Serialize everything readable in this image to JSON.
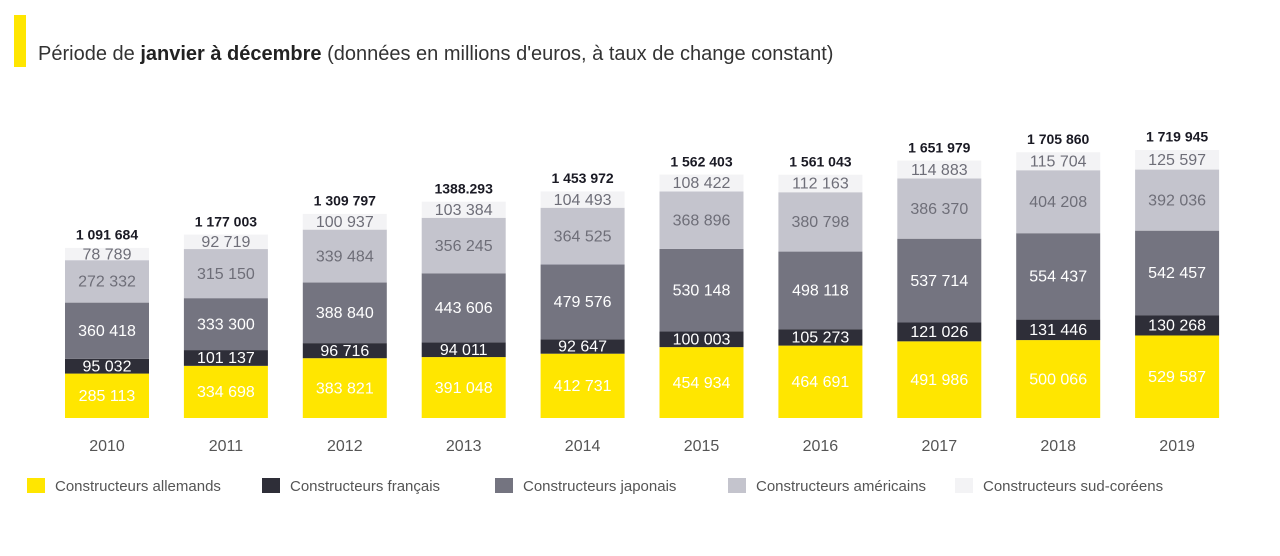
{
  "chart_data": {
    "type": "stacked_bar",
    "title_lead": "Période de",
    "title_bold": "janvier à décembre",
    "title_rest": "(données en millions d'euros, à taux de change constant)",
    "categories": [
      "2010",
      "2011",
      "2012",
      "2013",
      "2014",
      "2015",
      "2016",
      "2017",
      "2018",
      "2019"
    ],
    "series": [
      {
        "name": "Constructeurs allemands",
        "color": "#ffe600",
        "label_color": "#ffffff",
        "values": [
          285113,
          334698,
          383821,
          391048,
          412731,
          454934,
          464691,
          491986,
          500066,
          529587
        ],
        "value_labels": [
          "285 113",
          "334 698",
          "383 821",
          "391 048",
          "412 731",
          "454 934",
          "464 691",
          "491 986",
          "500 066",
          "529 587"
        ]
      },
      {
        "name": "Constructeurs français",
        "color": "#2e2e38",
        "label_color": "#ffffff",
        "values": [
          95032,
          101137,
          96716,
          94011,
          92647,
          100003,
          105273,
          121026,
          131446,
          130268
        ],
        "value_labels": [
          "95 032",
          "101 137",
          "96 716",
          "94 011",
          "92 647",
          "100 003",
          "105 273",
          "121 026",
          "131 446",
          "130 268"
        ]
      },
      {
        "name": "Constructeurs japonais",
        "color": "#747480",
        "label_color": "#ffffff",
        "values": [
          360418,
          333300,
          388840,
          443606,
          479576,
          530148,
          498118,
          537714,
          554437,
          542457
        ],
        "value_labels": [
          "360 418",
          "333 300",
          "388 840",
          "443 606",
          "479 576",
          "530 148",
          "498 118",
          "537 714",
          "554 437",
          "542 457"
        ]
      },
      {
        "name": "Constructeurs américains",
        "color": "#c4c4cd",
        "label_color": "#6e6e78",
        "values": [
          272332,
          315150,
          339484,
          356245,
          364525,
          368896,
          380798,
          386370,
          404208,
          392036
        ],
        "value_labels": [
          "272 332",
          "315 150",
          "339 484",
          "356 245",
          "364 525",
          "368 896",
          "380 798",
          "386 370",
          "404 208",
          "392 036"
        ]
      },
      {
        "name": "Constructeurs sud-coréens",
        "color": "#f3f3f5",
        "label_color": "#6e6e78",
        "values": [
          78789,
          92719,
          100937,
          103384,
          104493,
          108422,
          112163,
          114883,
          115704,
          125597
        ],
        "value_labels": [
          "78 789",
          "92 719",
          "100 937",
          "103 384",
          "104 493",
          "108 422",
          "112 163",
          "114 883",
          "115 704",
          "125 597"
        ]
      }
    ],
    "totals": [
      {
        "value": 1091684,
        "label": "1 091 684"
      },
      {
        "value": 1177003,
        "label": "1 177 003"
      },
      {
        "value": 1309797,
        "label": "1 309 797"
      },
      {
        "value": 1388293,
        "label": "1388.293"
      },
      {
        "value": 1453972,
        "label": "1 453 972"
      },
      {
        "value": 1562403,
        "label": "1 562 403"
      },
      {
        "value": 1561043,
        "label": "1 561 043"
      },
      {
        "value": 1651979,
        "label": "1 651 979"
      },
      {
        "value": 1705860,
        "label": "1 705 860"
      },
      {
        "value": 1719945,
        "label": "1 719 945"
      }
    ]
  }
}
